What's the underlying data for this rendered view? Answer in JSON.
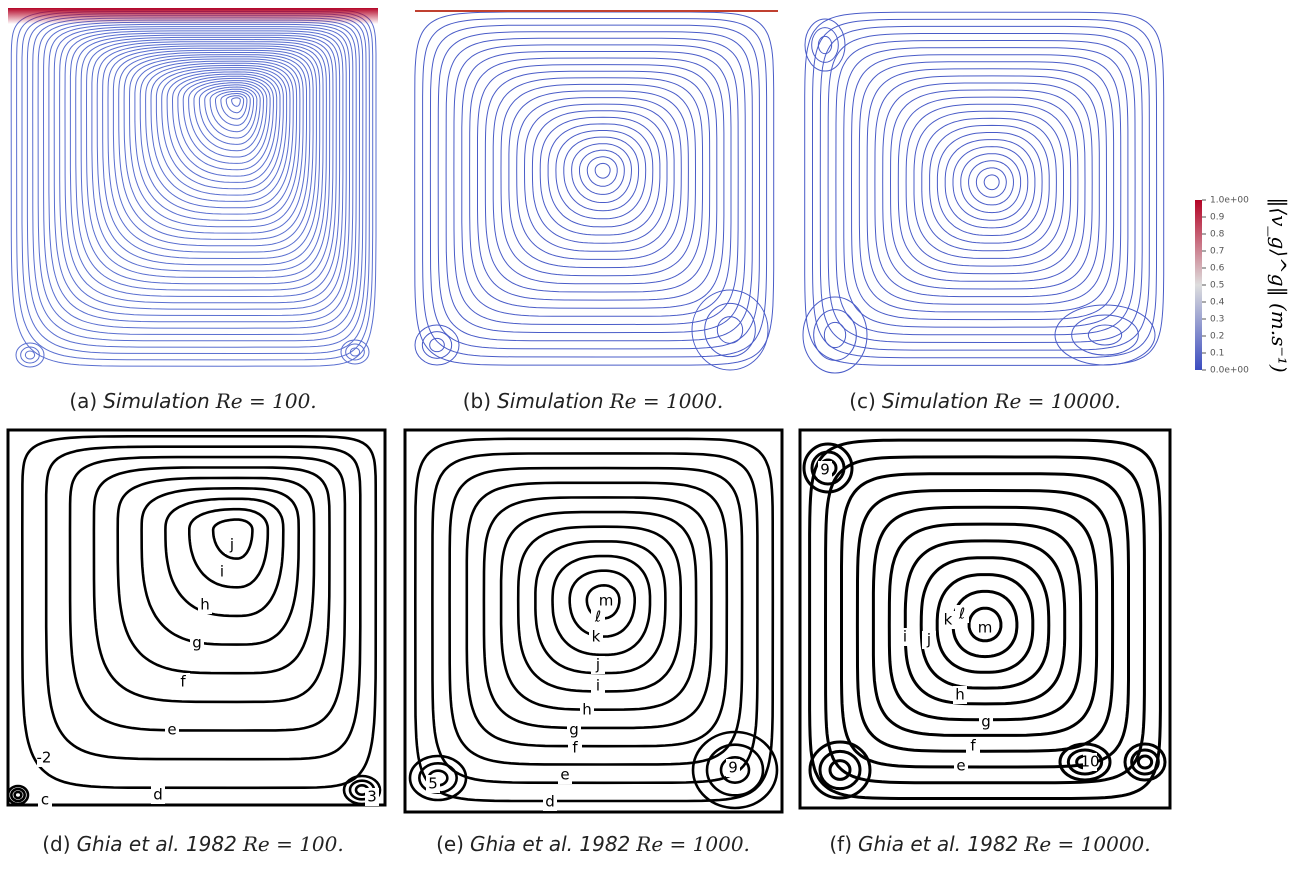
{
  "panels": [
    {
      "label": "(a)",
      "source": "Simulation",
      "formula": "Re = 100.",
      "contour_labels": []
    },
    {
      "label": "(b)",
      "source": "Simulation",
      "formula": "Re = 1000.",
      "contour_labels": []
    },
    {
      "label": "(c)",
      "source": "Simulation",
      "formula": "Re = 10000.",
      "contour_labels": []
    },
    {
      "label": "(d)",
      "source": "Ghia et al. 1982",
      "formula": "Re = 100.",
      "contour_labels": [
        "j",
        "i",
        "h",
        "g",
        "f",
        "e",
        "d",
        "-2",
        "c",
        "3"
      ]
    },
    {
      "label": "(e)",
      "source": "Ghia et al. 1982",
      "formula": "Re = 1000.",
      "contour_labels": [
        "m",
        "ℓ",
        "k",
        "j",
        "i",
        "h",
        "g",
        "f",
        "e",
        "d",
        "5",
        "9"
      ]
    },
    {
      "label": "(f)",
      "source": "Ghia et al. 1982",
      "formula": "Re = 10000.",
      "contour_labels": [
        "9",
        "i",
        "j",
        "k",
        "ℓ",
        "m",
        "h",
        "g",
        "f",
        "e",
        "10"
      ]
    }
  ],
  "colorbar": {
    "title": "‖⟨v_g⟩^g‖ (m.s⁻¹)",
    "ticks": [
      "1.0e+00",
      "0.9",
      "0.8",
      "0.7",
      "0.6",
      "0.5",
      "0.4",
      "0.3",
      "0.2",
      "0.1",
      "0.0e+00"
    ]
  }
}
